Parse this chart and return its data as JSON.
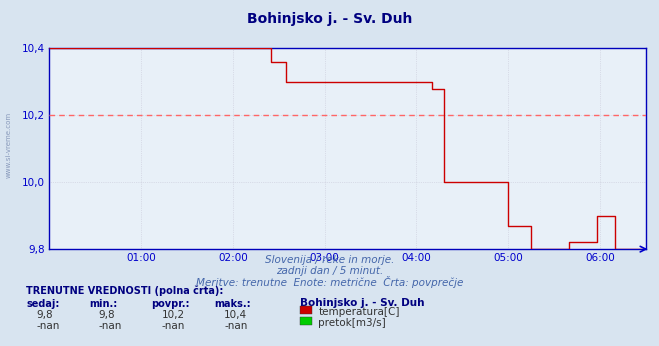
{
  "title": "Bohinjsko j. - Sv. Duh",
  "bg_color": "#d8e4f0",
  "plot_bg_color": "#e8f0f8",
  "grid_color": "#c8c8d8",
  "avg_line_color": "#ff6666",
  "avg_line_value": 10.2,
  "line_color": "#cc0000",
  "xaxis_color": "#0000cc",
  "yaxis_color": "#0000cc",
  "ylim": [
    9.8,
    10.4
  ],
  "yticks": [
    9.8,
    10.0,
    10.2,
    10.4
  ],
  "xlim": [
    0,
    390
  ],
  "xtick_positions": [
    60,
    120,
    180,
    240,
    300,
    360
  ],
  "xtick_labels": [
    "01:00",
    "02:00",
    "03:00",
    "04:00",
    "05:00",
    "06:00"
  ],
  "subtitle1": "Slovenija / reke in morje.",
  "subtitle2": "zadnji dan / 5 minut.",
  "subtitle3": "Meritve: trenutne  Enote: metrične  Črta: povprečje",
  "left_label": "www.si-vreme.com",
  "table_header": "TRENUTNE VREDNOSTI (polna črta):",
  "col_headers": [
    "sedaj:",
    "min.:",
    "povpr.:",
    "maks.:"
  ],
  "row1_vals": [
    "9,8",
    "9,8",
    "10,2",
    "10,4"
  ],
  "row2_vals": [
    "-nan",
    "-nan",
    "-nan",
    "-nan"
  ],
  "legend_label1": "temperatura[C]",
  "legend_label2": "pretok[m3/s]",
  "legend_color1": "#cc0000",
  "legend_color2": "#00cc00",
  "station_name": "Bohinjsko j. - Sv. Duh",
  "line_x": [
    0,
    100,
    100,
    145,
    145,
    155,
    155,
    250,
    250,
    258,
    258,
    300,
    300,
    315,
    315,
    340,
    340,
    358,
    358,
    370,
    370,
    390
  ],
  "line_y": [
    10.4,
    10.4,
    10.4,
    10.4,
    10.36,
    10.36,
    10.3,
    10.3,
    10.28,
    10.28,
    10.0,
    10.0,
    9.87,
    9.87,
    9.8,
    9.8,
    9.82,
    9.82,
    9.9,
    9.9,
    9.8,
    9.8
  ]
}
